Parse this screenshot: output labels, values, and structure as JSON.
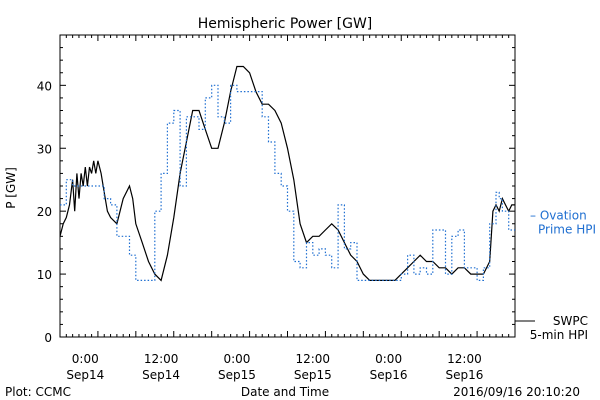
{
  "chart_data": {
    "type": "line",
    "title": "Hemispheric Power [GW]",
    "ylabel": "P [GW]",
    "xlabel": "Date and Time",
    "ylim": [
      0,
      48
    ],
    "yticks": [
      0,
      10,
      20,
      30,
      40
    ],
    "xlim": [
      "2016-09-13T20:00",
      "2016-09-16T20:00"
    ],
    "xticks": [
      {
        "time": "2016-09-14T00:00",
        "hour": "0:00",
        "day": "Sep14"
      },
      {
        "time": "2016-09-14T12:00",
        "hour": "12:00",
        "day": "Sep14"
      },
      {
        "time": "2016-09-15T00:00",
        "hour": "0:00",
        "day": "Sep15"
      },
      {
        "time": "2016-09-15T12:00",
        "hour": "12:00",
        "day": "Sep15"
      },
      {
        "time": "2016-09-16T00:00",
        "hour": "0:00",
        "day": "Sep16"
      },
      {
        "time": "2016-09-16T12:00",
        "hour": "12:00",
        "day": "Sep16"
      }
    ],
    "series": [
      {
        "name": "SWPC 5-min HPI",
        "label_lines": [
          "SWPC",
          "5-min HPI"
        ],
        "style": "solid",
        "color": "#000000",
        "points": [
          [
            "2016-09-13T20:00",
            16
          ],
          [
            "2016-09-13T20:30",
            18
          ],
          [
            "2016-09-13T21:00",
            19
          ],
          [
            "2016-09-13T21:30",
            21
          ],
          [
            "2016-09-13T22:00",
            25
          ],
          [
            "2016-09-13T22:20",
            20
          ],
          [
            "2016-09-13T22:40",
            26
          ],
          [
            "2016-09-13T23:00",
            22
          ],
          [
            "2016-09-13T23:20",
            26
          ],
          [
            "2016-09-13T23:40",
            24
          ],
          [
            "2016-09-14T00:00",
            27
          ],
          [
            "2016-09-14T00:20",
            24
          ],
          [
            "2016-09-14T00:40",
            27
          ],
          [
            "2016-09-14T01:00",
            26
          ],
          [
            "2016-09-14T01:20",
            28
          ],
          [
            "2016-09-14T01:40",
            26
          ],
          [
            "2016-09-14T02:00",
            28
          ],
          [
            "2016-09-14T02:30",
            26
          ],
          [
            "2016-09-14T03:00",
            23
          ],
          [
            "2016-09-14T03:30",
            20
          ],
          [
            "2016-09-14T04:00",
            19
          ],
          [
            "2016-09-14T05:00",
            18
          ],
          [
            "2016-09-14T06:00",
            22
          ],
          [
            "2016-09-14T07:00",
            24
          ],
          [
            "2016-09-14T07:30",
            22
          ],
          [
            "2016-09-14T08:00",
            18
          ],
          [
            "2016-09-14T09:00",
            15
          ],
          [
            "2016-09-14T10:00",
            12
          ],
          [
            "2016-09-14T11:00",
            10
          ],
          [
            "2016-09-14T12:00",
            9
          ],
          [
            "2016-09-14T13:00",
            13
          ],
          [
            "2016-09-14T14:00",
            19
          ],
          [
            "2016-09-14T15:00",
            26
          ],
          [
            "2016-09-14T16:00",
            31
          ],
          [
            "2016-09-14T17:00",
            36
          ],
          [
            "2016-09-14T18:00",
            36
          ],
          [
            "2016-09-14T19:00",
            33
          ],
          [
            "2016-09-14T20:00",
            30
          ],
          [
            "2016-09-14T21:00",
            30
          ],
          [
            "2016-09-14T22:00",
            34
          ],
          [
            "2016-09-14T23:00",
            39
          ],
          [
            "2016-09-15T00:00",
            43
          ],
          [
            "2016-09-15T01:00",
            43
          ],
          [
            "2016-09-15T02:00",
            42
          ],
          [
            "2016-09-15T03:00",
            39
          ],
          [
            "2016-09-15T04:00",
            37
          ],
          [
            "2016-09-15T05:00",
            37
          ],
          [
            "2016-09-15T06:00",
            36
          ],
          [
            "2016-09-15T07:00",
            34
          ],
          [
            "2016-09-15T08:00",
            30
          ],
          [
            "2016-09-15T09:00",
            25
          ],
          [
            "2016-09-15T10:00",
            18
          ],
          [
            "2016-09-15T11:00",
            15
          ],
          [
            "2016-09-15T12:00",
            16
          ],
          [
            "2016-09-15T13:00",
            16
          ],
          [
            "2016-09-15T14:00",
            17
          ],
          [
            "2016-09-15T15:00",
            18
          ],
          [
            "2016-09-15T16:00",
            17
          ],
          [
            "2016-09-15T17:00",
            15
          ],
          [
            "2016-09-15T18:00",
            13
          ],
          [
            "2016-09-15T19:00",
            12
          ],
          [
            "2016-09-15T20:00",
            10
          ],
          [
            "2016-09-15T21:00",
            9
          ],
          [
            "2016-09-15T22:00",
            9
          ],
          [
            "2016-09-15T23:00",
            9
          ],
          [
            "2016-09-16T00:00",
            9
          ],
          [
            "2016-09-16T01:00",
            9
          ],
          [
            "2016-09-16T02:00",
            10
          ],
          [
            "2016-09-16T03:00",
            11
          ],
          [
            "2016-09-16T04:00",
            12
          ],
          [
            "2016-09-16T05:00",
            13
          ],
          [
            "2016-09-16T06:00",
            12
          ],
          [
            "2016-09-16T07:00",
            12
          ],
          [
            "2016-09-16T08:00",
            11
          ],
          [
            "2016-09-16T09:00",
            11
          ],
          [
            "2016-09-16T10:00",
            10
          ],
          [
            "2016-09-16T11:00",
            11
          ],
          [
            "2016-09-16T12:00",
            11
          ],
          [
            "2016-09-16T13:00",
            10
          ],
          [
            "2016-09-16T14:00",
            10
          ],
          [
            "2016-09-16T15:00",
            10
          ],
          [
            "2016-09-16T16:00",
            12
          ],
          [
            "2016-09-16T16:30",
            20
          ],
          [
            "2016-09-16T17:00",
            21
          ],
          [
            "2016-09-16T17:30",
            20
          ],
          [
            "2016-09-16T18:00",
            22
          ],
          [
            "2016-09-16T18:30",
            21
          ],
          [
            "2016-09-16T19:00",
            20
          ],
          [
            "2016-09-16T19:30",
            21
          ],
          [
            "2016-09-16T20:00",
            21
          ]
        ]
      },
      {
        "name": "Ovation Prime HPI",
        "label_lines": [
          "– Ovation",
          "Prime HPI"
        ],
        "style": "dotted-step",
        "color": "#1f6fd1",
        "points": [
          [
            "2016-09-13T20:00",
            21
          ],
          [
            "2016-09-13T21:00",
            25
          ],
          [
            "2016-09-13T22:00",
            24
          ],
          [
            "2016-09-14T00:00",
            24
          ],
          [
            "2016-09-14T02:00",
            24
          ],
          [
            "2016-09-14T03:00",
            22
          ],
          [
            "2016-09-14T04:00",
            21
          ],
          [
            "2016-09-14T05:00",
            16
          ],
          [
            "2016-09-14T06:00",
            16
          ],
          [
            "2016-09-14T07:00",
            13
          ],
          [
            "2016-09-14T08:00",
            9
          ],
          [
            "2016-09-14T10:00",
            9
          ],
          [
            "2016-09-14T11:00",
            20
          ],
          [
            "2016-09-14T12:00",
            26
          ],
          [
            "2016-09-14T13:00",
            34
          ],
          [
            "2016-09-14T14:00",
            36
          ],
          [
            "2016-09-14T15:00",
            24
          ],
          [
            "2016-09-14T16:00",
            35
          ],
          [
            "2016-09-14T17:00",
            35
          ],
          [
            "2016-09-14T18:00",
            33
          ],
          [
            "2016-09-14T19:00",
            38
          ],
          [
            "2016-09-14T20:00",
            40
          ],
          [
            "2016-09-14T21:00",
            35
          ],
          [
            "2016-09-14T22:00",
            34
          ],
          [
            "2016-09-14T23:00",
            40
          ],
          [
            "2016-09-15T00:00",
            39
          ],
          [
            "2016-09-15T03:00",
            39
          ],
          [
            "2016-09-15T04:00",
            35
          ],
          [
            "2016-09-15T05:00",
            31
          ],
          [
            "2016-09-15T06:00",
            26
          ],
          [
            "2016-09-15T07:00",
            24
          ],
          [
            "2016-09-15T08:00",
            20
          ],
          [
            "2016-09-15T09:00",
            12
          ],
          [
            "2016-09-15T10:00",
            11
          ],
          [
            "2016-09-15T11:00",
            15
          ],
          [
            "2016-09-15T12:00",
            13
          ],
          [
            "2016-09-15T13:00",
            14
          ],
          [
            "2016-09-15T14:00",
            13
          ],
          [
            "2016-09-15T15:00",
            11
          ],
          [
            "2016-09-15T16:00",
            21
          ],
          [
            "2016-09-15T17:00",
            14
          ],
          [
            "2016-09-15T18:00",
            15
          ],
          [
            "2016-09-15T19:00",
            9
          ],
          [
            "2016-09-15T20:00",
            9
          ],
          [
            "2016-09-16T00:00",
            9
          ],
          [
            "2016-09-16T01:00",
            9
          ],
          [
            "2016-09-16T02:00",
            10
          ],
          [
            "2016-09-16T03:00",
            13
          ],
          [
            "2016-09-16T04:00",
            10
          ],
          [
            "2016-09-16T05:00",
            11
          ],
          [
            "2016-09-16T06:00",
            10
          ],
          [
            "2016-09-16T07:00",
            17
          ],
          [
            "2016-09-16T08:00",
            17
          ],
          [
            "2016-09-16T09:00",
            10
          ],
          [
            "2016-09-16T10:00",
            16
          ],
          [
            "2016-09-16T11:00",
            17
          ],
          [
            "2016-09-16T12:00",
            11
          ],
          [
            "2016-09-16T13:00",
            11
          ],
          [
            "2016-09-16T14:00",
            9
          ],
          [
            "2016-09-16T15:00",
            11
          ],
          [
            "2016-09-16T16:00",
            18
          ],
          [
            "2016-09-16T17:00",
            23
          ],
          [
            "2016-09-16T17:30",
            22
          ],
          [
            "2016-09-16T18:00",
            20
          ],
          [
            "2016-09-16T19:00",
            17
          ],
          [
            "2016-09-16T20:00",
            17
          ]
        ]
      }
    ],
    "grid": false,
    "legend": "right"
  },
  "footer": {
    "left": "Plot: CCMC",
    "right": "2016/09/16 20:10:20"
  }
}
